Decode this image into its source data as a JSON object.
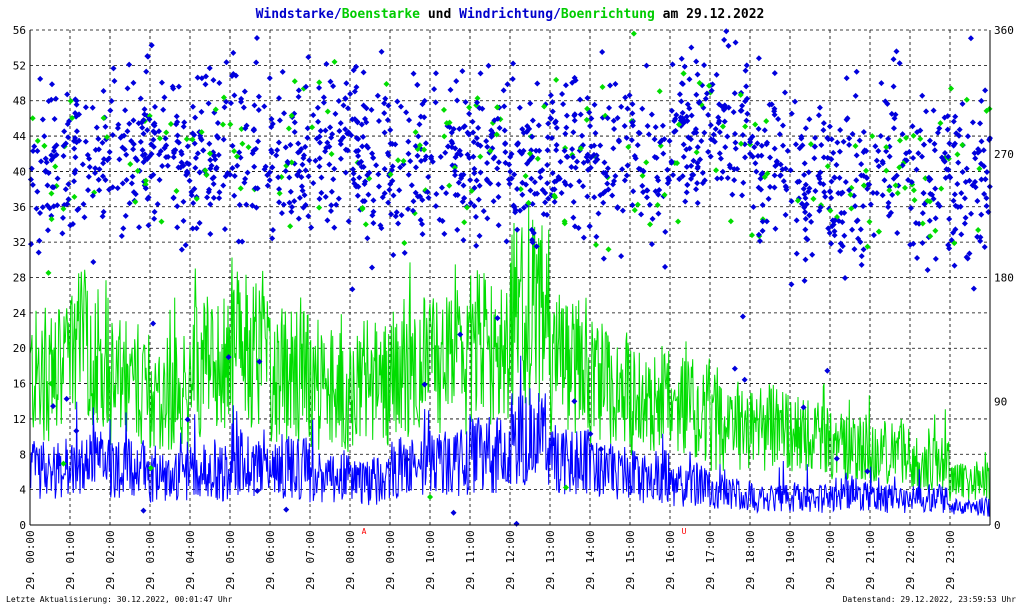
{
  "chart_data": {
    "type": "line",
    "title_parts": {
      "a": "Windstarke",
      "sep1": "/",
      "b": "Boenstarke",
      "mid": " und ",
      "c": "Windrichtung",
      "sep2": "/",
      "d": "Boenrichtung",
      "tail": " am 29.12.2022"
    },
    "y_left": {
      "min": 0,
      "max": 56,
      "ticks": [
        "0",
        "4",
        "8",
        "12",
        "16",
        "20",
        "24",
        "28",
        "32",
        "36",
        "40",
        "44",
        "48",
        "52",
        "56"
      ]
    },
    "y_right": {
      "min": 0,
      "max": 360,
      "ticks": [
        "0",
        "90",
        "180",
        "270",
        "360"
      ]
    },
    "x": {
      "min": 0,
      "max": 24,
      "ticks": [
        "29. 00:00",
        "29. 01:00",
        "29. 02:00",
        "29. 03:00",
        "29. 04:00",
        "29. 05:00",
        "29. 06:00",
        "29. 07:00",
        "29. 08:00",
        "29. 09:00",
        "29. 10:00",
        "29. 11:00",
        "29. 12:00",
        "29. 13:00",
        "29. 14:00",
        "29. 15:00",
        "29. 16:00",
        "29. 17:00",
        "29. 18:00",
        "29. 19:00",
        "29. 20:00",
        "29. 21:00",
        "29. 22:00",
        "29. 23:00"
      ]
    },
    "sun_markers": [
      {
        "label": "A",
        "hour": 8.35
      },
      {
        "label": "U",
        "hour": 16.35
      }
    ],
    "grid": true,
    "series": [
      {
        "name": "Windstarke",
        "color": "#0000ff",
        "hourly_mean": [
          6.5,
          7,
          6.5,
          5.5,
          6,
          7,
          6.5,
          5.5,
          5,
          6.5,
          7,
          8,
          10,
          7,
          6,
          5.5,
          4.5,
          3.5,
          3,
          3,
          3.5,
          3,
          3,
          2
        ],
        "hourly_peak": [
          15,
          14,
          13,
          12,
          13,
          14,
          13,
          12,
          11,
          14,
          13,
          15,
          20,
          14,
          12,
          11,
          10,
          9,
          8,
          7,
          7,
          7,
          7,
          8
        ]
      },
      {
        "name": "Boenstarke",
        "color": "#00dd00",
        "hourly_mean": [
          17,
          20,
          16,
          15,
          18,
          20,
          17,
          15,
          16,
          18,
          18,
          20,
          24,
          18,
          16,
          14,
          13,
          11,
          11,
          10,
          9,
          8,
          7,
          5
        ],
        "hourly_peak": [
          26,
          30,
          24,
          27,
          31,
          33,
          27,
          29,
          28,
          34,
          30,
          32,
          38,
          28,
          26,
          24,
          24,
          18,
          16,
          16,
          15,
          14,
          14,
          10
        ]
      },
      {
        "name": "Windrichtung",
        "color": "#0000ff",
        "hourly_mean": [
          260,
          265,
          275,
          270,
          275,
          275,
          270,
          280,
          270,
          265,
          275,
          270,
          260,
          270,
          270,
          265,
          285,
          290,
          270,
          245,
          240,
          270,
          250,
          250
        ]
      },
      {
        "name": "Boenrichtung",
        "color": "#00dd00",
        "hourly_mean": [
          260,
          265,
          275,
          270,
          275,
          275,
          270,
          280,
          270,
          265,
          275,
          270,
          260,
          270,
          270,
          265,
          285,
          290,
          270,
          245,
          240,
          270,
          250,
          250
        ]
      }
    ]
  },
  "footer": {
    "left": "Letzte Aktualisierung: 30.12.2022, 00:01:47 Uhr",
    "right": "Datenstand: 29.12.2022, 23:59:53 Uhr"
  },
  "colors": {
    "blue": "#0000cc",
    "green": "#00dd00",
    "red": "#ff0000"
  }
}
